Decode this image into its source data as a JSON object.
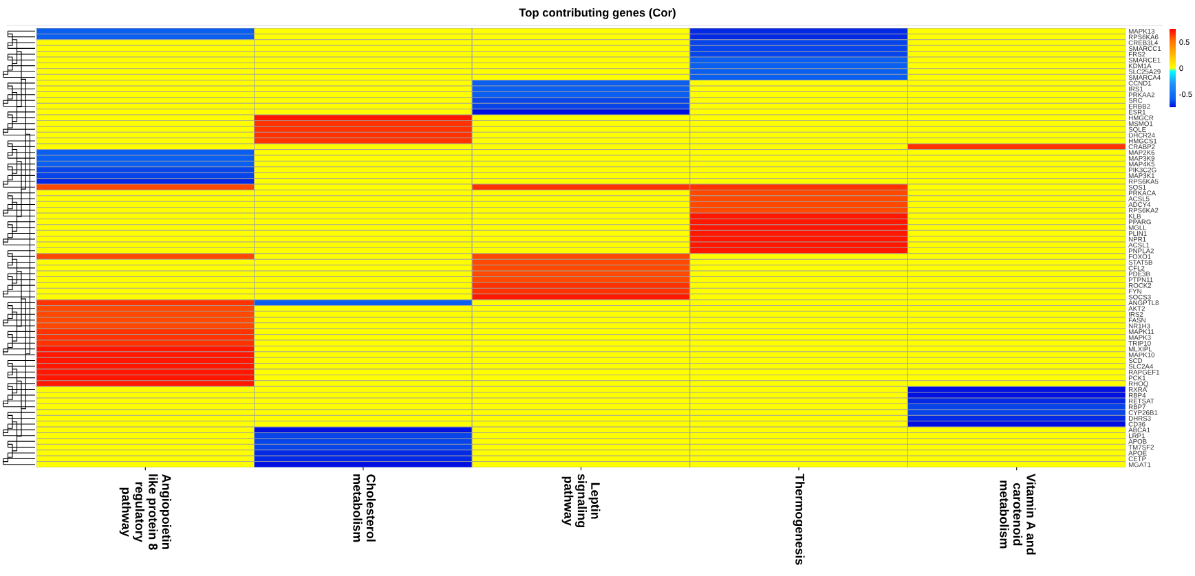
{
  "chart_data": {
    "type": "heatmap",
    "title": "Top contributing genes (Cor)",
    "categories": [
      "Angiopoietin\nlike protein 8\nregulatory\npathway",
      "Cholesterol\nmetabolism",
      "Leptin\nsignaling\npathway",
      "Thermogenesis",
      "Vitamin A and\ncarotenoid\nmetabolism"
    ],
    "y_categories": [
      "MAPK13",
      "RPS6KA6",
      "CREB3L4",
      "SMARCC1",
      "FRS2",
      "SMARCE1",
      "KDM1A",
      "SLC25A29",
      "SMARCA4",
      "CCND1",
      "IRS1",
      "PRKAA2",
      "SRC",
      "ERBB2",
      "ESR1",
      "HMGCR",
      "MSMO1",
      "SQLE",
      "DHCR24",
      "HMGCS1",
      "CRABP2",
      "MAP2K6",
      "MAP3K9",
      "MAP4K5",
      "PIK3C2G",
      "MAP3K1",
      "RPS6KA5",
      "SOS1",
      "PRKACA",
      "ACSL5",
      "ADCY4",
      "RPS6KA2",
      "KLB",
      "PPARG",
      "MGLL",
      "PLIN1",
      "NPR1",
      "ACSL1",
      "PNPLA2",
      "FOXO1",
      "STAT5B",
      "CFL2",
      "PDE3B",
      "PTPN11",
      "ROCK2",
      "FYN",
      "SOCS3",
      "ANGPTL8",
      "AKT2",
      "IRS2",
      "FASN",
      "NR1H3",
      "MAPK11",
      "MAPK3",
      "TRIP10",
      "MLXIPL",
      "MAPK10",
      "SCD",
      "SLC2A4",
      "RAPGEF1",
      "PCK1",
      "RHOQ",
      "RXRA",
      "RBP4",
      "RETSAT",
      "RBP7",
      "CYP26B1",
      "DHRS3",
      "CD36",
      "ABCA1",
      "LRP1",
      "APOB",
      "TM7SF2",
      "APOE",
      "CETP",
      "MGAT1"
    ],
    "cells": [
      [
        -0.6,
        0,
        0,
        -0.7,
        0
      ],
      [
        -0.6,
        0,
        0,
        -0.7,
        0
      ],
      [
        0,
        0,
        0,
        -0.65,
        0
      ],
      [
        0,
        0,
        0,
        -0.65,
        0
      ],
      [
        0,
        0,
        0,
        -0.65,
        0
      ],
      [
        0,
        0,
        0,
        -0.6,
        0
      ],
      [
        0,
        0,
        0,
        -0.6,
        0
      ],
      [
        0,
        0,
        0,
        -0.6,
        0
      ],
      [
        0,
        0,
        0,
        -0.6,
        0
      ],
      [
        0,
        0,
        -0.6,
        0,
        0
      ],
      [
        0,
        0,
        -0.6,
        0,
        0
      ],
      [
        0,
        0,
        -0.6,
        0,
        0
      ],
      [
        0,
        0,
        -0.65,
        0,
        0
      ],
      [
        0,
        0,
        -0.65,
        0,
        0
      ],
      [
        0,
        0,
        -0.75,
        0,
        0
      ],
      [
        0,
        0.7,
        0,
        0,
        0
      ],
      [
        0,
        0.65,
        0,
        0,
        0
      ],
      [
        0,
        0.65,
        0,
        0,
        0
      ],
      [
        0,
        0.65,
        0,
        0,
        0
      ],
      [
        0,
        0.65,
        0,
        0,
        0
      ],
      [
        0,
        0,
        0,
        0,
        0.65
      ],
      [
        -0.6,
        0,
        0,
        0,
        0
      ],
      [
        -0.6,
        0,
        0,
        0,
        0
      ],
      [
        -0.6,
        0,
        0,
        0,
        0
      ],
      [
        -0.65,
        0,
        0,
        0,
        0
      ],
      [
        -0.65,
        0,
        0,
        0,
        0
      ],
      [
        -0.7,
        0,
        0,
        0,
        0
      ],
      [
        0.6,
        0,
        0.65,
        0.65,
        0
      ],
      [
        0,
        0,
        0,
        0.6,
        0
      ],
      [
        0,
        0,
        0,
        0.6,
        0
      ],
      [
        0,
        0,
        0,
        0.6,
        0
      ],
      [
        0,
        0,
        0,
        0.6,
        0
      ],
      [
        0,
        0,
        0,
        0.7,
        0
      ],
      [
        0,
        0,
        0,
        0.7,
        0
      ],
      [
        0,
        0,
        0,
        0.7,
        0
      ],
      [
        0,
        0,
        0,
        0.7,
        0
      ],
      [
        0,
        0,
        0,
        0.7,
        0
      ],
      [
        0,
        0,
        0,
        0.7,
        0
      ],
      [
        0,
        0,
        0,
        0.7,
        0
      ],
      [
        0.6,
        0,
        0.6,
        0,
        0
      ],
      [
        0,
        0,
        0.6,
        0,
        0
      ],
      [
        0,
        0,
        0.6,
        0,
        0
      ],
      [
        0,
        0,
        0.6,
        0,
        0
      ],
      [
        0,
        0,
        0.6,
        0,
        0
      ],
      [
        0,
        0,
        0.65,
        0,
        0
      ],
      [
        0,
        0,
        0.65,
        0,
        0
      ],
      [
        0,
        0,
        0.7,
        0,
        0
      ],
      [
        0.65,
        -0.6,
        0,
        0,
        0
      ],
      [
        0.6,
        0,
        0,
        0,
        0
      ],
      [
        0.6,
        0,
        0,
        0,
        0
      ],
      [
        0.6,
        0,
        0,
        0,
        0
      ],
      [
        0.6,
        0,
        0,
        0,
        0
      ],
      [
        0.65,
        0,
        0,
        0,
        0
      ],
      [
        0.65,
        0,
        0,
        0,
        0
      ],
      [
        0.65,
        0,
        0,
        0,
        0
      ],
      [
        0.7,
        0,
        0,
        0,
        0
      ],
      [
        0.7,
        0,
        0,
        0,
        0
      ],
      [
        0.7,
        0,
        0,
        0,
        0
      ],
      [
        0.7,
        0,
        0,
        0,
        0
      ],
      [
        0.7,
        0,
        0,
        0,
        0
      ],
      [
        0.7,
        0,
        0,
        0,
        0
      ],
      [
        0.7,
        0,
        0,
        0,
        0
      ],
      [
        0,
        0,
        0,
        0,
        -0.75
      ],
      [
        0,
        0,
        0,
        0,
        -0.75
      ],
      [
        0,
        0,
        0,
        0,
        -0.7
      ],
      [
        0,
        0,
        0,
        0,
        -0.65
      ],
      [
        0,
        0,
        0,
        0,
        -0.65
      ],
      [
        0,
        0,
        0,
        0,
        -0.7
      ],
      [
        0,
        0,
        0,
        0,
        -0.75
      ],
      [
        0,
        -0.75,
        0,
        0,
        0
      ],
      [
        0,
        -0.65,
        0,
        0,
        0
      ],
      [
        0,
        -0.65,
        0,
        0,
        0
      ],
      [
        0,
        -0.65,
        0,
        0,
        0
      ],
      [
        0,
        -0.7,
        0,
        0,
        0
      ],
      [
        0,
        -0.7,
        0,
        0,
        0
      ],
      [
        0,
        -0.75,
        0,
        0,
        0
      ]
    ],
    "clim": [
      -0.75,
      0.75
    ],
    "cticks": [
      {
        "value": -0.5,
        "label": "-0.5"
      },
      0,
      0.5
    ]
  }
}
